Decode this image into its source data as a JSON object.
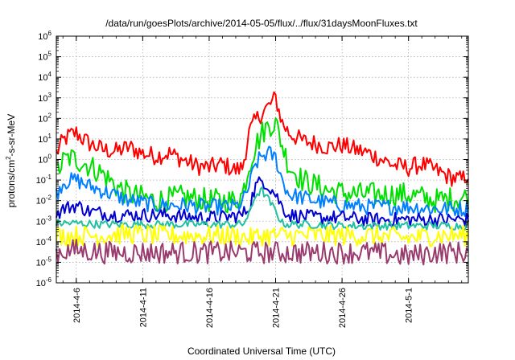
{
  "chart_data": {
    "type": "line",
    "title": "/data/run/goesPlots/archive/2014-05-05/flux/../flux/31daysMoonFluxes.txt",
    "xlabel": "Coordinated Universal Time (UTC)",
    "ylabel": {
      "pre": "protons/cm",
      "sup": "2",
      "post": "-s-sr-MeV"
    },
    "yscale": "log",
    "ylim": [
      1e-06,
      1000000.0
    ],
    "xlim": [
      "2014-04-04T12:00",
      "2014-05-05T12:00"
    ],
    "grid": true,
    "legend": "none",
    "y_ticks": [
      {
        "base": "10",
        "exp": "-6"
      },
      {
        "base": "10",
        "exp": "-5"
      },
      {
        "base": "10",
        "exp": "-4"
      },
      {
        "base": "10",
        "exp": "-3"
      },
      {
        "base": "10",
        "exp": "-2"
      },
      {
        "base": "10",
        "exp": "-1"
      },
      {
        "base": "10",
        "exp": "0"
      },
      {
        "base": "10",
        "exp": "1"
      },
      {
        "base": "10",
        "exp": "2"
      },
      {
        "base": "10",
        "exp": "3"
      },
      {
        "base": "10",
        "exp": "4"
      },
      {
        "base": "10",
        "exp": "5"
      },
      {
        "base": "10",
        "exp": "6"
      }
    ],
    "x_ticks": [
      {
        "date": "2014-04-06",
        "label": "2014-4-6"
      },
      {
        "date": "2014-04-11",
        "label": "2014-4-11"
      },
      {
        "date": "2014-04-16",
        "label": "2014-4-16"
      },
      {
        "date": "2014-04-21",
        "label": "2014-4-21"
      },
      {
        "date": "2014-04-26",
        "label": "2014-4-26"
      },
      {
        "date": "2014-05-01",
        "label": "2014-5-1"
      }
    ],
    "series": [
      {
        "color": "#ff0000",
        "x": [
          "2014-04-04T12:00",
          "2014-04-05T00:00",
          "2014-04-05T12:00",
          "2014-04-06T00:00",
          "2014-04-06T12:00",
          "2014-04-07T00:00",
          "2014-04-08T00:00",
          "2014-04-09T00:00",
          "2014-04-10T00:00",
          "2014-04-11T00:00",
          "2014-04-12T00:00",
          "2014-04-13T00:00",
          "2014-04-14T00:00",
          "2014-04-15T00:00",
          "2014-04-16T00:00",
          "2014-04-17T00:00",
          "2014-04-18T00:00",
          "2014-04-18T12:00",
          "2014-04-19T00:00",
          "2014-04-19T12:00",
          "2014-04-20T00:00",
          "2014-04-20T12:00",
          "2014-04-21T00:00",
          "2014-04-21T12:00",
          "2014-04-22T00:00",
          "2014-04-23T00:00",
          "2014-04-24T00:00",
          "2014-04-25T00:00",
          "2014-04-26T00:00",
          "2014-04-27T00:00",
          "2014-04-28T00:00",
          "2014-04-29T00:00",
          "2014-04-30T00:00",
          "2014-05-01T00:00",
          "2014-05-02T00:00",
          "2014-05-03T00:00",
          "2014-05-04T00:00",
          "2014-05-05T00:00",
          "2014-05-05T12:00"
        ],
        "y": [
          2,
          8,
          15,
          20,
          10,
          6,
          3,
          2.5,
          4,
          2,
          1.5,
          2,
          1,
          0.5,
          0.4,
          0.6,
          0.3,
          0.4,
          20,
          80,
          200,
          400,
          1000,
          60,
          20,
          8,
          6,
          4,
          5,
          3,
          2,
          1,
          0.5,
          0.4,
          0.6,
          0.3,
          0.15,
          0.1,
          0.2
        ],
        "noise": 0.9
      },
      {
        "color": "#00e000",
        "x": [
          "2014-04-04T12:00",
          "2014-04-05T00:00",
          "2014-04-05T12:00",
          "2014-04-06T00:00",
          "2014-04-07T00:00",
          "2014-04-08T00:00",
          "2014-04-09T00:00",
          "2014-04-10T00:00",
          "2014-04-12T00:00",
          "2014-04-14T00:00",
          "2014-04-16T00:00",
          "2014-04-18T00:00",
          "2014-04-18T12:00",
          "2014-04-19T00:00",
          "2014-04-19T12:00",
          "2014-04-20T00:00",
          "2014-04-20T12:00",
          "2014-04-21T00:00",
          "2014-04-21T12:00",
          "2014-04-22T00:00",
          "2014-04-23T00:00",
          "2014-04-25T00:00",
          "2014-04-27T00:00",
          "2014-04-29T00:00",
          "2014-05-01T00:00",
          "2014-05-03T00:00",
          "2014-05-05T12:00"
        ],
        "y": [
          0.2,
          0.8,
          1.2,
          1,
          0.5,
          0.2,
          0.05,
          0.02,
          0.01,
          0.015,
          0.01,
          0.01,
          0.02,
          0.5,
          5,
          20,
          50,
          60,
          5,
          0.5,
          0.1,
          0.03,
          0.02,
          0.02,
          0.02,
          0.01,
          0.015
        ],
        "noise": 1.2
      },
      {
        "color": "#0080ff",
        "x": [
          "2014-04-04T12:00",
          "2014-04-05T00:00",
          "2014-04-06T00:00",
          "2014-04-07T00:00",
          "2014-04-08T00:00",
          "2014-04-10T00:00",
          "2014-04-12T00:00",
          "2014-04-14T00:00",
          "2014-04-16T00:00",
          "2014-04-18T00:00",
          "2014-04-18T12:00",
          "2014-04-19T00:00",
          "2014-04-19T12:00",
          "2014-04-20T00:00",
          "2014-04-20T12:00",
          "2014-04-21T00:00",
          "2014-04-21T12:00",
          "2014-04-22T00:00",
          "2014-04-24T00:00",
          "2014-04-26T00:00",
          "2014-04-28T00:00",
          "2014-05-01T00:00",
          "2014-05-03T00:00",
          "2014-05-05T12:00"
        ],
        "y": [
          0.02,
          0.08,
          0.1,
          0.05,
          0.03,
          0.01,
          0.006,
          0.006,
          0.005,
          0.005,
          0.008,
          0.05,
          0.6,
          1.5,
          2,
          1.2,
          0.1,
          0.02,
          0.01,
          0.006,
          0.005,
          0.005,
          0.004,
          0.004
        ],
        "noise": 0.8
      },
      {
        "color": "#0000d0",
        "x": [
          "2014-04-04T12:00",
          "2014-04-05T00:00",
          "2014-04-06T00:00",
          "2014-04-07T00:00",
          "2014-04-09T00:00",
          "2014-04-11T00:00",
          "2014-04-13T00:00",
          "2014-04-15T00:00",
          "2014-04-17T00:00",
          "2014-04-18T12:00",
          "2014-04-19T00:00",
          "2014-04-19T12:00",
          "2014-04-20T00:00",
          "2014-04-20T12:00",
          "2014-04-21T00:00",
          "2014-04-21T12:00",
          "2014-04-22T00:00",
          "2014-04-24T00:00",
          "2014-04-26T00:00",
          "2014-04-28T00:00",
          "2014-05-01T00:00",
          "2014-05-03T00:00",
          "2014-05-05T12:00"
        ],
        "y": [
          0.002,
          0.004,
          0.006,
          0.003,
          0.002,
          0.002,
          0.002,
          0.0015,
          0.0015,
          0.002,
          0.005,
          0.05,
          0.1,
          0.05,
          0.02,
          0.005,
          0.002,
          0.0015,
          0.0015,
          0.0012,
          0.0012,
          0.0012,
          0.0012
        ],
        "noise": 0.7
      },
      {
        "color": "#20c0a0",
        "x": [
          "2014-04-04T12:00",
          "2014-04-06T00:00",
          "2014-04-08T00:00",
          "2014-04-10T00:00",
          "2014-04-12T00:00",
          "2014-04-14T00:00",
          "2014-04-16T00:00",
          "2014-04-18T12:00",
          "2014-04-19T00:00",
          "2014-04-19T12:00",
          "2014-04-20T00:00",
          "2014-04-20T12:00",
          "2014-04-21T00:00",
          "2014-04-21T12:00",
          "2014-04-22T00:00",
          "2014-04-24T00:00",
          "2014-04-26T00:00",
          "2014-04-28T00:00",
          "2014-05-01T00:00",
          "2014-05-03T00:00",
          "2014-05-05T12:00"
        ],
        "y": [
          0.0008,
          0.0008,
          0.0007,
          0.0007,
          0.0007,
          0.0007,
          0.0007,
          0.0007,
          0.002,
          0.02,
          0.03,
          0.01,
          0.003,
          0.0008,
          0.0007,
          0.0007,
          0.0006,
          0.0006,
          0.0006,
          0.0006,
          0.0006
        ],
        "noise": 0.4
      },
      {
        "color": "#ffff00",
        "x": [
          "2014-04-04T12:00",
          "2014-04-06T00:00",
          "2014-04-08T00:00",
          "2014-04-10T00:00",
          "2014-04-12T00:00",
          "2014-04-14T00:00",
          "2014-04-16T00:00",
          "2014-04-18T00:00",
          "2014-04-19T00:00",
          "2014-04-20T00:00",
          "2014-04-21T00:00",
          "2014-04-22T00:00",
          "2014-04-24T00:00",
          "2014-04-26T00:00",
          "2014-04-28T00:00",
          "2014-05-01T00:00",
          "2014-05-03T00:00",
          "2014-05-05T12:00"
        ],
        "y": [
          0.0002,
          0.0002,
          0.0002,
          0.00025,
          0.0002,
          0.0002,
          0.0002,
          0.0002,
          0.00015,
          0.0002,
          0.0002,
          0.0002,
          0.0002,
          0.0002,
          0.0002,
          0.00015,
          0.0002,
          0.0002
        ],
        "noise": 1.0
      },
      {
        "color": "#9a3b6e",
        "x": [
          "2014-04-04T12:00",
          "2014-04-06T00:00",
          "2014-04-08T00:00",
          "2014-04-10T00:00",
          "2014-04-12T00:00",
          "2014-04-14T00:00",
          "2014-04-16T00:00",
          "2014-04-18T00:00",
          "2014-04-19T00:00",
          "2014-04-20T00:00",
          "2014-04-21T00:00",
          "2014-04-22T00:00",
          "2014-04-24T00:00",
          "2014-04-26T00:00",
          "2014-04-28T00:00",
          "2014-05-01T00:00",
          "2014-05-03T00:00",
          "2014-05-05T12:00"
        ],
        "y": [
          3e-05,
          4e-05,
          3e-05,
          3e-05,
          3e-05,
          3e-05,
          3e-05,
          3e-05,
          3e-05,
          3e-05,
          3e-05,
          3e-05,
          3e-05,
          3e-05,
          3e-05,
          2e-05,
          3e-05,
          3e-05
        ],
        "noise": 1.1
      }
    ]
  }
}
